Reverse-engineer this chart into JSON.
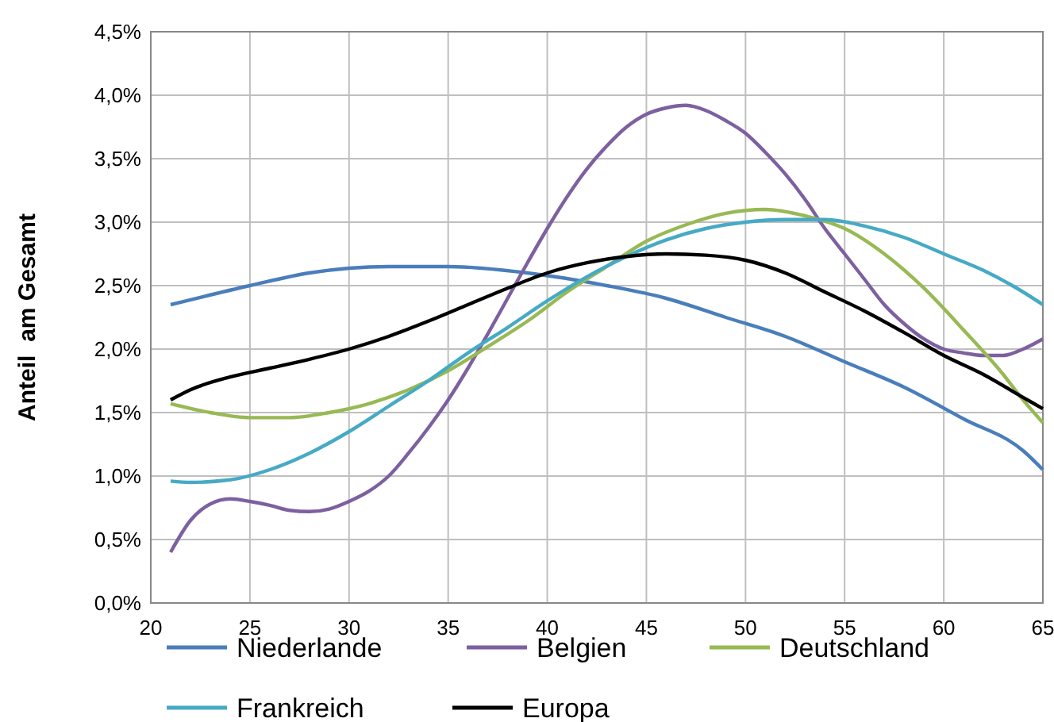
{
  "chart_data": {
    "type": "line",
    "ylabel": "Anteil  am Gesamt",
    "xlim": [
      20,
      65
    ],
    "xticks": [
      20,
      25,
      30,
      35,
      40,
      45,
      50,
      55,
      60,
      65
    ],
    "ylim": [
      0,
      4.5
    ],
    "yticks": [
      {
        "value": 0,
        "label": "0,0%"
      },
      {
        "value": 0.5,
        "label": "0,5%"
      },
      {
        "value": 1,
        "label": "1,0%"
      },
      {
        "value": 1.5,
        "label": "1,5%"
      },
      {
        "value": 2,
        "label": "2,0%"
      },
      {
        "value": 2.5,
        "label": "2,5%"
      },
      {
        "value": 3,
        "label": "3,0%"
      },
      {
        "value": 3.5,
        "label": "3,5%"
      },
      {
        "value": 4,
        "label": "4,0%"
      },
      {
        "value": 4.5,
        "label": "4,5%"
      }
    ],
    "grid": true,
    "legend": "bottom",
    "marker": "none",
    "line_style": "solid",
    "series": [
      {
        "name": "Niederlande",
        "color": "#4a7ebb",
        "x": [
          21,
          25,
          28,
          32,
          35,
          39,
          43,
          46,
          49,
          52,
          55,
          58,
          61,
          64,
          65
        ],
        "values": [
          2.35,
          2.5,
          2.6,
          2.65,
          2.65,
          2.6,
          2.5,
          2.4,
          2.25,
          2.1,
          1.9,
          1.7,
          1.45,
          1.2,
          1.05
        ]
      },
      {
        "name": "Belgien",
        "color": "#7d60a0",
        "x": [
          21,
          22,
          23,
          24,
          25,
          26,
          27,
          28,
          29,
          30,
          31,
          32,
          33,
          34,
          35,
          36,
          37,
          38,
          39,
          40,
          41,
          42,
          43,
          44,
          45,
          46,
          47,
          48,
          49,
          50,
          51,
          52,
          53,
          54,
          55,
          56,
          57,
          58,
          59,
          60,
          61,
          62,
          63,
          64,
          65
        ],
        "values": [
          0.4,
          0.65,
          0.78,
          0.82,
          0.8,
          0.77,
          0.73,
          0.72,
          0.74,
          0.8,
          0.88,
          1.0,
          1.18,
          1.38,
          1.6,
          1.85,
          2.12,
          2.4,
          2.68,
          2.95,
          3.2,
          3.42,
          3.6,
          3.75,
          3.85,
          3.9,
          3.92,
          3.88,
          3.8,
          3.7,
          3.55,
          3.38,
          3.18,
          2.95,
          2.75,
          2.55,
          2.35,
          2.2,
          2.08,
          2.0,
          1.97,
          1.95,
          1.95,
          2.0,
          2.08
        ]
      },
      {
        "name": "Deutschland",
        "color": "#98b954",
        "x": [
          21,
          23,
          25,
          27,
          29,
          31,
          33,
          35,
          37,
          39,
          41,
          43,
          45,
          47,
          49,
          51,
          53,
          55,
          57,
          59,
          61,
          63,
          64,
          65
        ],
        "values": [
          1.57,
          1.5,
          1.46,
          1.46,
          1.5,
          1.57,
          1.68,
          1.83,
          2.02,
          2.22,
          2.45,
          2.65,
          2.85,
          2.98,
          3.07,
          3.1,
          3.05,
          2.95,
          2.75,
          2.48,
          2.15,
          1.8,
          1.6,
          1.42
        ]
      },
      {
        "name": "Frankreich",
        "color": "#46aac5",
        "x": [
          21,
          22,
          24,
          26,
          28,
          30,
          32,
          34,
          36,
          38,
          40,
          42,
          44,
          46,
          48,
          50,
          52,
          54,
          56,
          58,
          60,
          62,
          64,
          65
        ],
        "values": [
          0.96,
          0.95,
          0.97,
          1.05,
          1.18,
          1.35,
          1.55,
          1.75,
          1.97,
          2.17,
          2.38,
          2.57,
          2.73,
          2.86,
          2.95,
          3.0,
          3.02,
          3.02,
          2.97,
          2.88,
          2.75,
          2.62,
          2.45,
          2.35
        ]
      },
      {
        "name": "Europa",
        "color": "#000000",
        "x": [
          21,
          22,
          24,
          26,
          28,
          30,
          32,
          34,
          36,
          38,
          40,
          42,
          44,
          46,
          48,
          50,
          52,
          54,
          56,
          58,
          60,
          62,
          64,
          65
        ],
        "values": [
          1.6,
          1.68,
          1.78,
          1.85,
          1.92,
          2.0,
          2.1,
          2.22,
          2.35,
          2.48,
          2.6,
          2.68,
          2.73,
          2.75,
          2.74,
          2.7,
          2.6,
          2.45,
          2.3,
          2.13,
          1.95,
          1.8,
          1.62,
          1.53
        ]
      }
    ]
  }
}
